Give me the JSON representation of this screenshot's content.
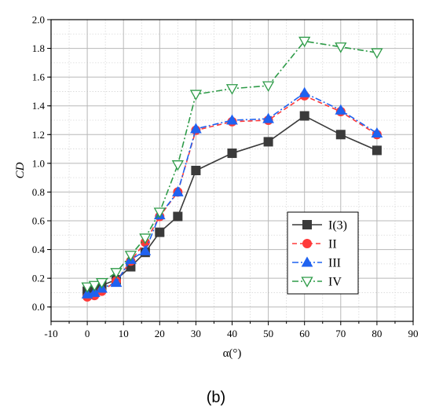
{
  "caption": "(b)",
  "chart_data": {
    "type": "line",
    "xlabel": "α(°)",
    "ylabel": "CD",
    "xlim": [
      -10,
      90
    ],
    "ylim": [
      -0.1,
      2.0
    ],
    "xticks": [
      -10,
      0,
      10,
      20,
      30,
      40,
      50,
      60,
      70,
      80,
      90
    ],
    "xtick_labels": [
      "-10",
      "0",
      "10",
      "20",
      "30",
      "40",
      "50",
      "60",
      "70",
      "80",
      "90"
    ],
    "yticks": [
      0.0,
      0.2,
      0.4,
      0.6,
      0.8,
      1.0,
      1.2,
      1.4,
      1.6,
      1.8,
      2.0
    ],
    "ytick_labels": [
      "0.0",
      "0.2",
      "0.4",
      "0.6",
      "0.8",
      "1.0",
      "1.2",
      "1.4",
      "1.6",
      "1.8",
      "2.0"
    ],
    "grid": true,
    "legend_position": "lower-right",
    "x": [
      0,
      2,
      4,
      8,
      12,
      16,
      20,
      25,
      30,
      40,
      50,
      60,
      70,
      80
    ],
    "series": [
      {
        "name": "I(3)",
        "color": "#3a3a3a",
        "marker": "square",
        "line": "solid",
        "values": [
          0.11,
          0.12,
          0.15,
          0.19,
          0.28,
          0.38,
          0.52,
          0.63,
          0.95,
          1.07,
          1.15,
          1.33,
          1.2,
          1.09
        ]
      },
      {
        "name": "II",
        "color": "#ff3a3a",
        "marker": "circle",
        "line": "dashed",
        "values": [
          0.07,
          0.08,
          0.11,
          0.18,
          0.32,
          0.45,
          0.63,
          0.8,
          1.23,
          1.29,
          1.3,
          1.47,
          1.36,
          1.2
        ]
      },
      {
        "name": "III",
        "color": "#1f62f0",
        "marker": "triangle",
        "line": "dashdot",
        "values": [
          0.09,
          0.1,
          0.13,
          0.17,
          0.33,
          0.39,
          0.64,
          0.8,
          1.24,
          1.3,
          1.31,
          1.49,
          1.37,
          1.21
        ]
      },
      {
        "name": "IV",
        "color": "#2e9b48",
        "marker": "triangle-down-open",
        "line": "dashdot",
        "values": [
          0.14,
          0.15,
          0.17,
          0.24,
          0.36,
          0.48,
          0.66,
          0.99,
          1.48,
          1.52,
          1.54,
          1.85,
          1.81,
          1.77
        ]
      }
    ]
  }
}
